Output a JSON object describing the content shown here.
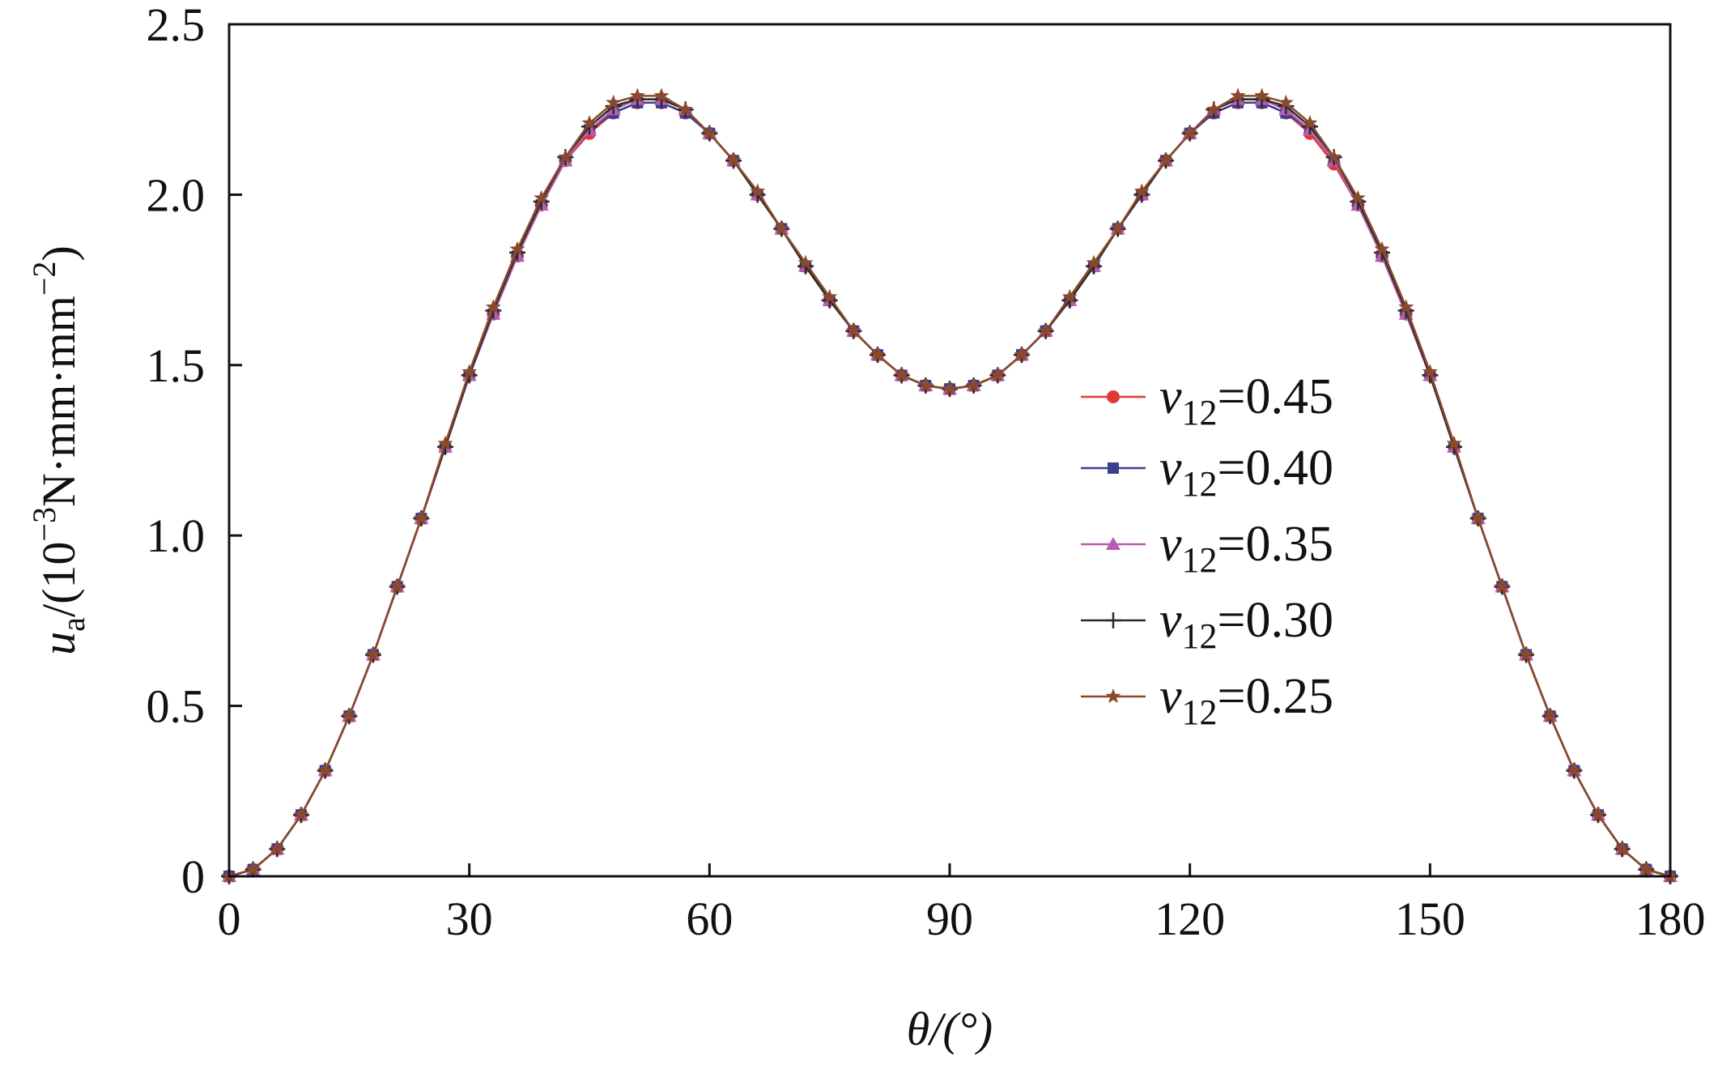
{
  "chart_data": {
    "type": "line",
    "xlabel": "θ/(°)",
    "ylabel": {
      "var": "u",
      "sub": "a",
      "pre": "/(10",
      "sup1": "−3",
      "mid": "N·mm·mm",
      "sup2": "−2",
      "post": ")"
    },
    "xlim": [
      0,
      180
    ],
    "ylim": [
      0,
      2.5
    ],
    "xticks": [
      0,
      30,
      60,
      90,
      120,
      150,
      180
    ],
    "xtick_labels": [
      "0",
      "30",
      "60",
      "90",
      "120",
      "150",
      "180"
    ],
    "yticks": [
      0,
      0.5,
      1.0,
      1.5,
      2.0,
      2.5
    ],
    "ytick_labels": [
      "0",
      "0.5",
      "1.0",
      "1.5",
      "2.0",
      "2.5"
    ],
    "grid": false,
    "legend_position": "center-right",
    "x": [
      0,
      3,
      6,
      9,
      12,
      15,
      18,
      21,
      24,
      27,
      30,
      33,
      36,
      39,
      42,
      45,
      48,
      51,
      54,
      57,
      60,
      63,
      66,
      69,
      72,
      75,
      78,
      81,
      84,
      87,
      90,
      93,
      96,
      99,
      102,
      105,
      108,
      111,
      114,
      117,
      120,
      123,
      126,
      129,
      132,
      135,
      138,
      141,
      144,
      147,
      150,
      153,
      156,
      159,
      162,
      165,
      168,
      171,
      174,
      177,
      180
    ],
    "series": [
      {
        "name": "ν12=0.45",
        "legend_var": "ν",
        "legend_sub": "12",
        "legend_val": "=0.45",
        "color": "#e03a36",
        "marker": "circle",
        "values": [
          0.0,
          0.02,
          0.08,
          0.18,
          0.31,
          0.47,
          0.65,
          0.85,
          1.05,
          1.26,
          1.47,
          1.65,
          1.82,
          1.97,
          2.1,
          2.18,
          2.24,
          2.27,
          2.27,
          2.24,
          2.18,
          2.1,
          2.0,
          1.9,
          1.79,
          1.69,
          1.6,
          1.53,
          1.47,
          1.44,
          1.43,
          1.44,
          1.47,
          1.53,
          1.6,
          1.69,
          1.79,
          1.9,
          2.0,
          2.1,
          2.18,
          2.24,
          2.27,
          2.27,
          2.24,
          2.18,
          2.09,
          1.97,
          1.82,
          1.65,
          1.47,
          1.26,
          1.05,
          0.85,
          0.65,
          0.47,
          0.31,
          0.18,
          0.08,
          0.02,
          0.0
        ]
      },
      {
        "name": "ν12=0.40",
        "legend_var": "ν",
        "legend_sub": "12",
        "legend_val": "=0.40",
        "color": "#3a3f8f",
        "marker": "square",
        "values": [
          0.0,
          0.02,
          0.08,
          0.18,
          0.31,
          0.47,
          0.65,
          0.85,
          1.05,
          1.26,
          1.47,
          1.65,
          1.82,
          1.97,
          2.1,
          2.19,
          2.24,
          2.27,
          2.27,
          2.24,
          2.18,
          2.1,
          2.0,
          1.9,
          1.79,
          1.69,
          1.6,
          1.53,
          1.47,
          1.44,
          1.43,
          1.44,
          1.47,
          1.53,
          1.6,
          1.69,
          1.79,
          1.9,
          2.0,
          2.1,
          2.18,
          2.24,
          2.27,
          2.27,
          2.24,
          2.19,
          2.1,
          1.97,
          1.82,
          1.65,
          1.47,
          1.26,
          1.05,
          0.85,
          0.65,
          0.47,
          0.31,
          0.18,
          0.08,
          0.02,
          0.0
        ]
      },
      {
        "name": "ν12=0.35",
        "legend_var": "ν",
        "legend_sub": "12",
        "legend_val": "=0.35",
        "color": "#b85cb5",
        "marker": "triangle",
        "values": [
          0.0,
          0.02,
          0.08,
          0.18,
          0.31,
          0.47,
          0.65,
          0.85,
          1.05,
          1.26,
          1.47,
          1.65,
          1.82,
          1.97,
          2.1,
          2.19,
          2.25,
          2.28,
          2.28,
          2.25,
          2.18,
          2.1,
          2.0,
          1.9,
          1.79,
          1.69,
          1.6,
          1.53,
          1.47,
          1.44,
          1.43,
          1.44,
          1.47,
          1.53,
          1.6,
          1.69,
          1.79,
          1.9,
          2.0,
          2.1,
          2.18,
          2.25,
          2.28,
          2.28,
          2.25,
          2.19,
          2.1,
          1.97,
          1.82,
          1.65,
          1.47,
          1.26,
          1.05,
          0.85,
          0.65,
          0.47,
          0.31,
          0.18,
          0.08,
          0.02,
          0.0
        ]
      },
      {
        "name": "ν12=0.30",
        "legend_var": "ν",
        "legend_sub": "12",
        "legend_val": "=0.30",
        "color": "#2a2a2a",
        "marker": "plus",
        "values": [
          0.0,
          0.02,
          0.08,
          0.18,
          0.31,
          0.47,
          0.65,
          0.85,
          1.05,
          1.26,
          1.47,
          1.66,
          1.83,
          1.98,
          2.11,
          2.2,
          2.26,
          2.28,
          2.28,
          2.25,
          2.18,
          2.1,
          2.0,
          1.9,
          1.79,
          1.69,
          1.6,
          1.53,
          1.47,
          1.44,
          1.43,
          1.44,
          1.47,
          1.53,
          1.6,
          1.69,
          1.79,
          1.9,
          2.0,
          2.1,
          2.18,
          2.25,
          2.28,
          2.28,
          2.26,
          2.2,
          2.11,
          1.98,
          1.83,
          1.66,
          1.47,
          1.26,
          1.05,
          0.85,
          0.65,
          0.47,
          0.31,
          0.18,
          0.08,
          0.02,
          0.0
        ]
      },
      {
        "name": "ν12=0.25",
        "legend_var": "ν",
        "legend_sub": "12",
        "legend_val": "=0.25",
        "color": "#8a4a2a",
        "marker": "star",
        "values": [
          0.0,
          0.02,
          0.08,
          0.18,
          0.31,
          0.47,
          0.65,
          0.85,
          1.05,
          1.27,
          1.48,
          1.67,
          1.84,
          1.99,
          2.11,
          2.21,
          2.27,
          2.29,
          2.29,
          2.25,
          2.18,
          2.1,
          2.01,
          1.9,
          1.8,
          1.7,
          1.6,
          1.53,
          1.47,
          1.44,
          1.43,
          1.44,
          1.47,
          1.53,
          1.6,
          1.7,
          1.8,
          1.9,
          2.01,
          2.1,
          2.18,
          2.25,
          2.29,
          2.29,
          2.27,
          2.21,
          2.11,
          1.99,
          1.84,
          1.67,
          1.48,
          1.27,
          1.05,
          0.85,
          0.65,
          0.47,
          0.31,
          0.18,
          0.08,
          0.02,
          0.0
        ]
      }
    ]
  }
}
